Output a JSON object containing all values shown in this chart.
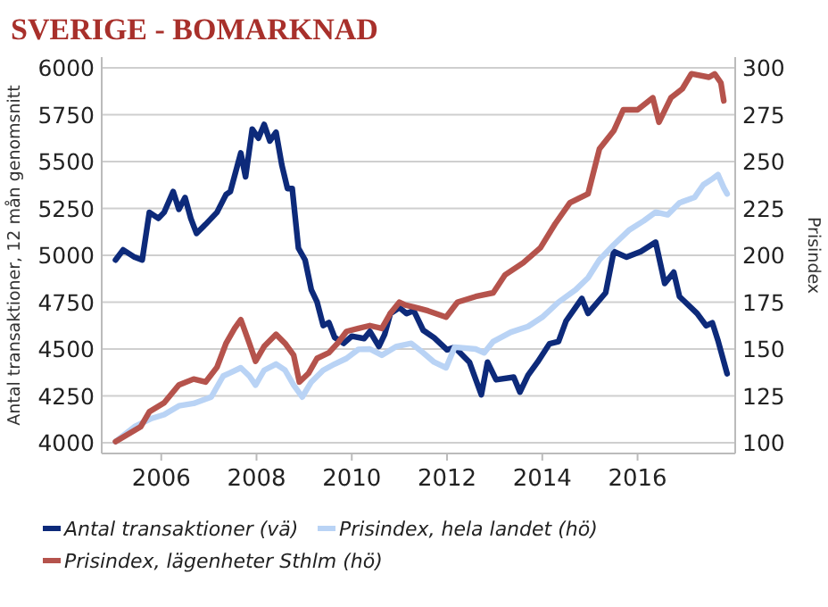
{
  "chart_data": {
    "type": "line",
    "title": "SVERIGE - BOMARKNAD",
    "ylabel": "Antal transaktioner, 12 mån genomsnitt",
    "y2label": "Prisindex",
    "xlim": [
      2004.75,
      2018.05
    ],
    "xticks": [
      2006,
      2008,
      2010,
      2012,
      2014,
      2016
    ],
    "ylim": [
      4000,
      6000
    ],
    "yticks": [
      4000,
      4250,
      4500,
      4750,
      5000,
      5250,
      5500,
      5750,
      6000
    ],
    "y2lim": [
      100,
      300
    ],
    "y2ticks": [
      100,
      125,
      150,
      175,
      200,
      225,
      250,
      275,
      300
    ],
    "grid": "y",
    "legend": "bottom",
    "line_style": "solid",
    "series": [
      {
        "name": "Antal transaktioner (vä)",
        "color": "#0d2a7a",
        "x": [
          2005.04,
          2005.2,
          2005.44,
          2005.6,
          2005.75,
          2005.94,
          2006.06,
          2006.25,
          2006.37,
          2006.5,
          2006.62,
          2006.74,
          2006.93,
          2007.17,
          2007.36,
          2007.45,
          2007.67,
          2007.77,
          2007.91,
          2008.04,
          2008.16,
          2008.28,
          2008.41,
          2008.53,
          2008.65,
          2008.75,
          2008.88,
          2009.02,
          2009.15,
          2009.27,
          2009.4,
          2009.52,
          2009.64,
          2009.83,
          2010.0,
          2010.26,
          2010.38,
          2010.57,
          2010.69,
          2010.81,
          2011.0,
          2011.15,
          2011.3,
          2011.5,
          2011.73,
          2012.0,
          2012.16,
          2012.47,
          2012.72,
          2012.85,
          2013.03,
          2013.4,
          2013.53,
          2013.7,
          2013.9,
          2014.15,
          2014.34,
          2014.5,
          2014.83,
          2014.96,
          2015.33,
          2015.5,
          2015.77,
          2016.07,
          2016.38,
          2016.57,
          2016.76,
          2016.88,
          2017.25,
          2017.44,
          2017.57,
          2017.69,
          2017.88
        ],
        "values": [
          4975,
          5029,
          4990,
          4975,
          5229,
          5197,
          5229,
          5340,
          5245,
          5308,
          5197,
          5117,
          5165,
          5229,
          5324,
          5340,
          5546,
          5419,
          5673,
          5625,
          5698,
          5610,
          5657,
          5483,
          5356,
          5356,
          5038,
          4975,
          4816,
          4752,
          4625,
          4641,
          4562,
          4530,
          4568,
          4556,
          4594,
          4514,
          4578,
          4689,
          4721,
          4689,
          4705,
          4600,
          4560,
          4496,
          4509,
          4430,
          4256,
          4430,
          4336,
          4350,
          4270,
          4360,
          4430,
          4528,
          4540,
          4650,
          4770,
          4690,
          4800,
          5020,
          4990,
          5020,
          5070,
          4850,
          4910,
          4780,
          4690,
          4624,
          4640,
          4544,
          4368
        ]
      },
      {
        "name": "Prisindex, hela landet (hö)",
        "color": "#b9d3f5",
        "axis": "y2",
        "x": [
          2005.04,
          2005.44,
          2005.8,
          2006.06,
          2006.37,
          2006.68,
          2007.05,
          2007.3,
          2007.67,
          2007.85,
          2007.98,
          2008.16,
          2008.41,
          2008.6,
          2008.78,
          2008.96,
          2009.15,
          2009.4,
          2009.64,
          2009.89,
          2010.14,
          2010.38,
          2010.63,
          2010.94,
          2011.25,
          2011.5,
          2011.73,
          2011.98,
          2012.16,
          2012.6,
          2012.78,
          2012.97,
          2013.34,
          2013.7,
          2014.0,
          2014.34,
          2014.7,
          2014.96,
          2015.2,
          2015.5,
          2015.83,
          2016.13,
          2016.38,
          2016.63,
          2016.88,
          2017.2,
          2017.38,
          2017.57,
          2017.69,
          2017.81,
          2017.88
        ],
        "values": [
          100.6,
          108.6,
          113,
          115,
          119.7,
          121,
          124.4,
          135.6,
          140,
          135.6,
          130.8,
          138.7,
          142,
          138.7,
          130.8,
          124.4,
          132.4,
          138.7,
          142,
          145,
          149.8,
          150,
          146.7,
          151.4,
          153,
          148,
          143,
          140,
          151,
          150,
          148,
          154,
          159,
          162,
          167,
          175,
          181.6,
          188,
          197.6,
          205.6,
          213.6,
          218.4,
          223,
          221.6,
          228,
          231,
          237.6,
          240.8,
          243,
          236,
          232.8
        ]
      },
      {
        "name": "Prisindex, lägenheter Sthlm (hö)",
        "color": "#b5534c",
        "axis": "y2",
        "x": [
          2005.04,
          2005.57,
          2005.75,
          2006.06,
          2006.37,
          2006.68,
          2006.93,
          2007.17,
          2007.36,
          2007.54,
          2007.67,
          2007.85,
          2007.98,
          2008.16,
          2008.41,
          2008.6,
          2008.78,
          2008.9,
          2009.09,
          2009.27,
          2009.52,
          2009.7,
          2009.89,
          2010.14,
          2010.38,
          2010.63,
          2010.81,
          2011.0,
          2011.12,
          2011.37,
          2011.6,
          2011.98,
          2012.22,
          2012.6,
          2012.97,
          2013.22,
          2013.6,
          2013.96,
          2014.27,
          2014.58,
          2014.96,
          2015.2,
          2015.5,
          2015.7,
          2016.0,
          2016.32,
          2016.45,
          2016.7,
          2016.94,
          2017.13,
          2017.5,
          2017.62,
          2017.75,
          2017.81
        ],
        "values": [
          100.6,
          108.6,
          116.5,
          121.3,
          130.8,
          134,
          132.4,
          140.3,
          153,
          161,
          165.7,
          153,
          143.5,
          151.4,
          157.8,
          153,
          146.7,
          132.4,
          137,
          145,
          148,
          153,
          159.4,
          161,
          162.5,
          161,
          169,
          175,
          173.5,
          172,
          170.4,
          167,
          175,
          178,
          180,
          189.6,
          196,
          204,
          216.8,
          228,
          232.8,
          256.8,
          266.4,
          277.6,
          277.6,
          284,
          271,
          284,
          288.8,
          296.8,
          295,
          296.8,
          292,
          282.4
        ]
      }
    ]
  }
}
